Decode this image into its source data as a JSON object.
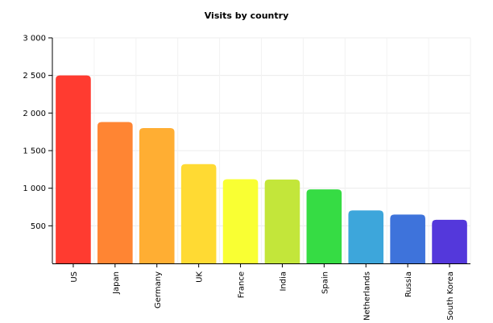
{
  "chart_data": {
    "type": "bar",
    "title": "Visits by country",
    "xlabel": "",
    "ylabel": "",
    "categories": [
      "US",
      "Japan",
      "Germany",
      "UK",
      "France",
      "India",
      "Spain",
      "Netherlands",
      "Russia",
      "South Korea"
    ],
    "values": [
      2500,
      1880,
      1800,
      1320,
      1120,
      1115,
      985,
      705,
      650,
      580
    ],
    "colors": [
      "#FF3B30",
      "#FF8533",
      "#FFAE33",
      "#FFDA33",
      "#F9FF33",
      "#C3E63A",
      "#36DC44",
      "#3DA6DB",
      "#3E73DB",
      "#5438DB"
    ],
    "ylim": [
      0,
      3000
    ],
    "yticks": [
      500,
      1000,
      1500,
      2000,
      2500,
      3000
    ],
    "ytick_labels": [
      "500",
      "1 000",
      "1 500",
      "2 000",
      "2 500",
      "3 000"
    ],
    "grid": true,
    "legend": "none"
  }
}
